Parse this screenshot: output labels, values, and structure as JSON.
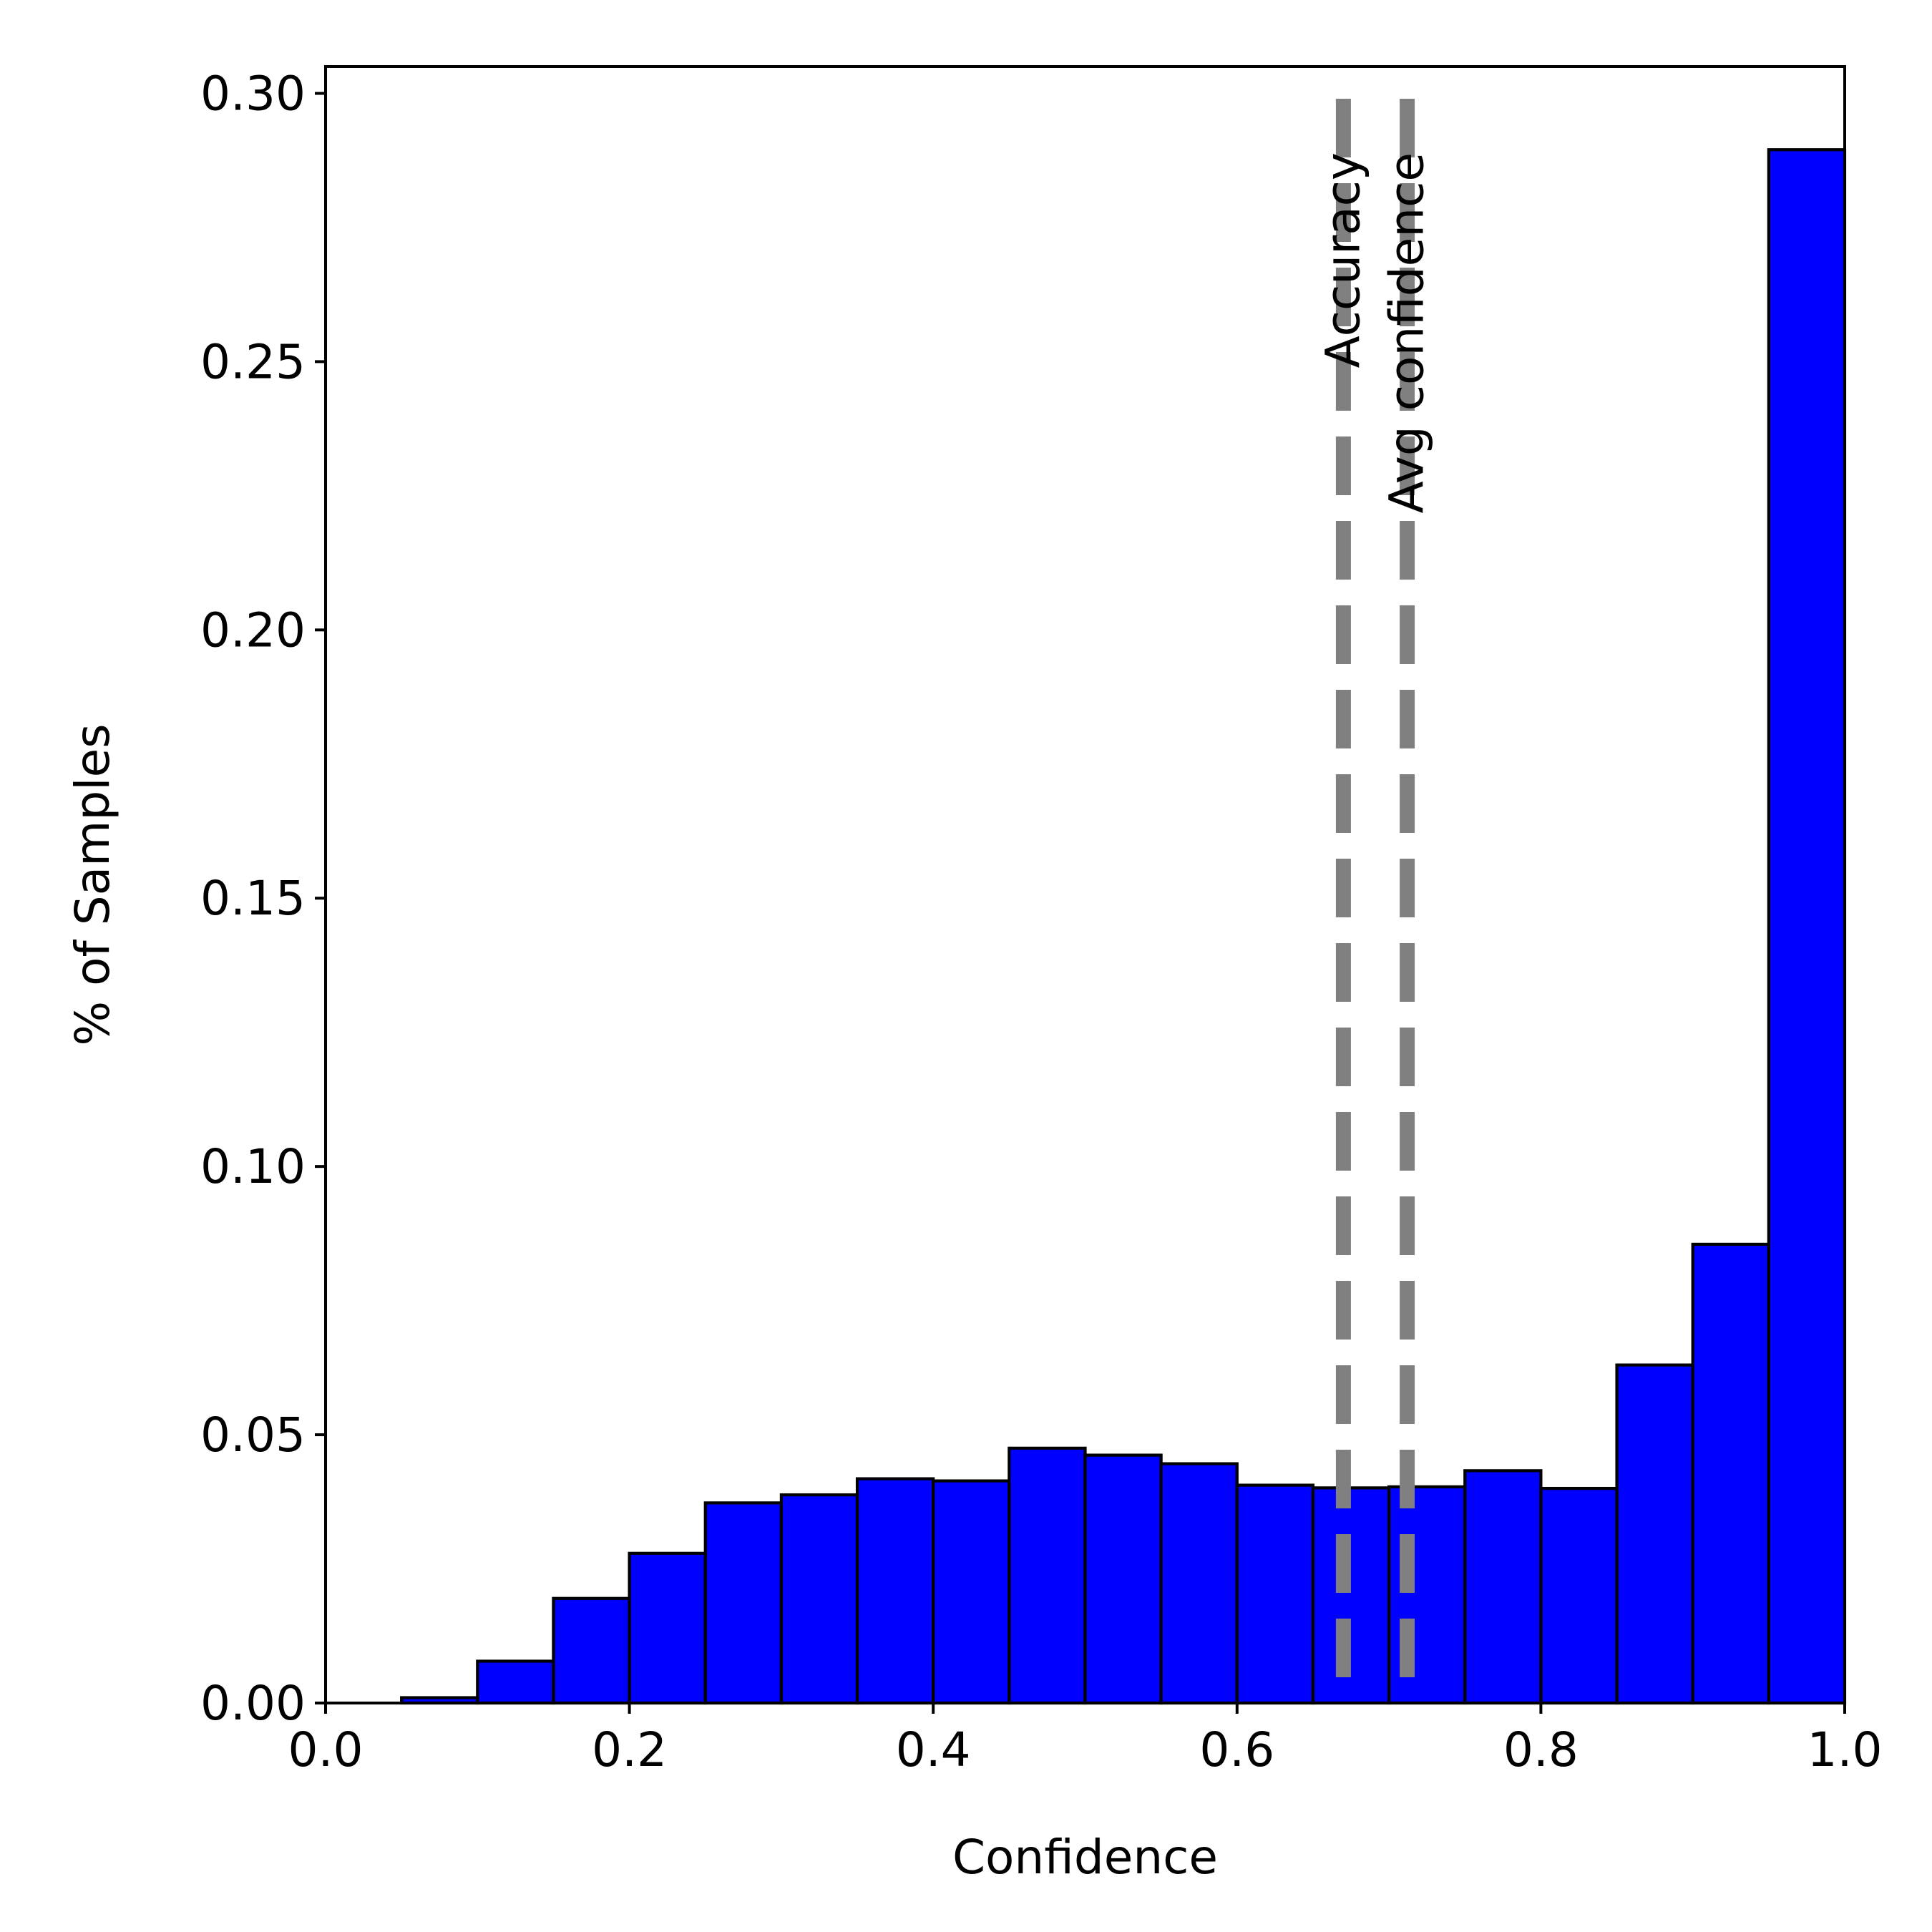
{
  "chart_data": {
    "type": "bar",
    "title": "",
    "xlabel": "Confidence",
    "ylabel": "% of Samples",
    "xlim": [
      0.0,
      1.0
    ],
    "ylim": [
      0.0,
      0.305
    ],
    "grid": false,
    "bin_width": 0.05,
    "bins": [
      {
        "x0": 0.0,
        "value": 0.0
      },
      {
        "x0": 0.05,
        "value": 0.001
      },
      {
        "x0": 0.1,
        "value": 0.0078
      },
      {
        "x0": 0.15,
        "value": 0.0195
      },
      {
        "x0": 0.2,
        "value": 0.0279
      },
      {
        "x0": 0.25,
        "value": 0.0373
      },
      {
        "x0": 0.3,
        "value": 0.0388
      },
      {
        "x0": 0.35,
        "value": 0.0418
      },
      {
        "x0": 0.4,
        "value": 0.0414
      },
      {
        "x0": 0.45,
        "value": 0.0475
      },
      {
        "x0": 0.5,
        "value": 0.0462
      },
      {
        "x0": 0.55,
        "value": 0.0446
      },
      {
        "x0": 0.6,
        "value": 0.0406
      },
      {
        "x0": 0.65,
        "value": 0.0401
      },
      {
        "x0": 0.7,
        "value": 0.0403
      },
      {
        "x0": 0.75,
        "value": 0.0433
      },
      {
        "x0": 0.8,
        "value": 0.04
      },
      {
        "x0": 0.85,
        "value": 0.063
      },
      {
        "x0": 0.9,
        "value": 0.0855
      },
      {
        "x0": 0.95,
        "value": 0.2895
      }
    ],
    "x_ticks": [
      {
        "value": 0.0,
        "label": "0.0"
      },
      {
        "value": 0.2,
        "label": "0.2"
      },
      {
        "value": 0.4,
        "label": "0.4"
      },
      {
        "value": 0.6,
        "label": "0.6"
      },
      {
        "value": 0.8,
        "label": "0.8"
      },
      {
        "value": 1.0,
        "label": "1.0"
      }
    ],
    "y_ticks": [
      {
        "value": 0.0,
        "label": "0.00"
      },
      {
        "value": 0.05,
        "label": "0.05"
      },
      {
        "value": 0.1,
        "label": "0.10"
      },
      {
        "value": 0.15,
        "label": "0.15"
      },
      {
        "value": 0.2,
        "label": "0.20"
      },
      {
        "value": 0.25,
        "label": "0.25"
      },
      {
        "value": 0.3,
        "label": "0.30"
      }
    ],
    "reference_lines": [
      {
        "label": "Accuracy",
        "value": 0.67
      },
      {
        "label": "Avg confidence",
        "value": 0.712
      }
    ],
    "colors": {
      "bar_fill": "#0000ff",
      "bar_edge": "#000000",
      "reference_line": "#808080"
    }
  }
}
